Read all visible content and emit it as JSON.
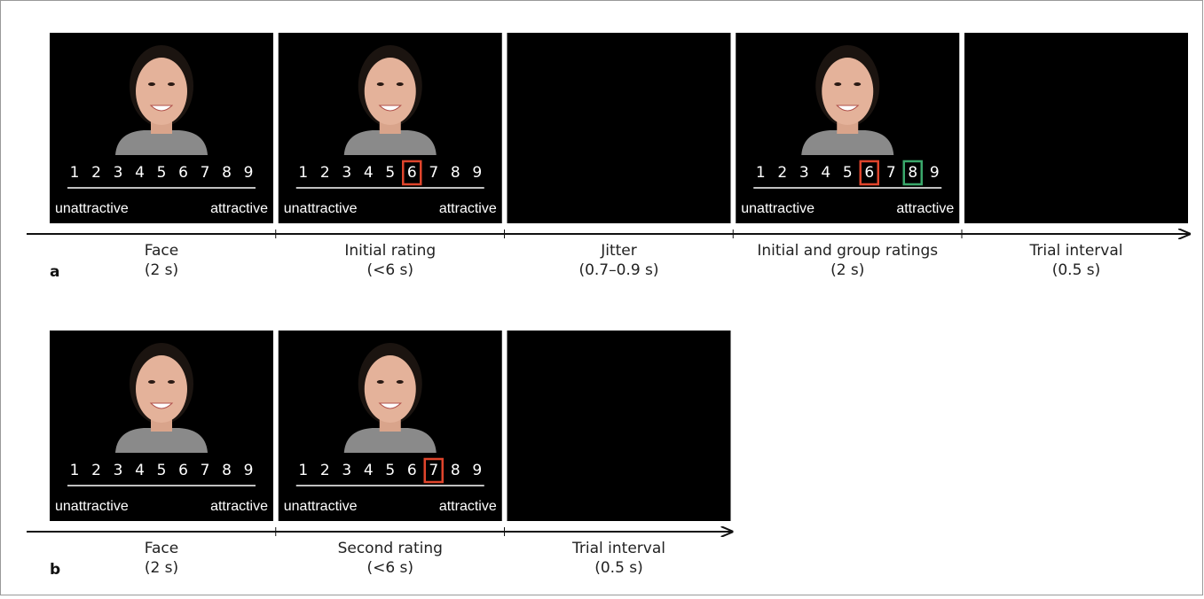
{
  "scale": {
    "numbers": [
      "1",
      "2",
      "3",
      "4",
      "5",
      "6",
      "7",
      "8",
      "9"
    ],
    "low_label": "unattractive",
    "high_label": "attractive"
  },
  "panels": [
    {
      "letter": "a",
      "screens": [
        {
          "face": true,
          "boxes": []
        },
        {
          "face": true,
          "boxes": [
            {
              "at": 6,
              "color": "#e0452c"
            }
          ]
        },
        {
          "face": false,
          "boxes": []
        },
        {
          "face": true,
          "boxes": [
            {
              "at": 6,
              "color": "#e0452c"
            },
            {
              "at": 8,
              "color": "#3aa86b"
            }
          ]
        },
        {
          "face": false,
          "boxes": []
        }
      ],
      "steps": [
        {
          "label": "Face",
          "duration": "(2 s)"
        },
        {
          "label": "Initial rating",
          "duration": "(<6 s)"
        },
        {
          "label": "Jitter",
          "duration": "(0.7–0.9 s)"
        },
        {
          "label": "Initial and group ratings",
          "duration": "(2 s)"
        },
        {
          "label": "Trial interval",
          "duration": "(0.5 s)"
        }
      ]
    },
    {
      "letter": "b",
      "screens": [
        {
          "face": true,
          "boxes": []
        },
        {
          "face": true,
          "boxes": [
            {
              "at": 7,
              "color": "#e0452c"
            }
          ]
        },
        {
          "face": false,
          "boxes": []
        }
      ],
      "steps": [
        {
          "label": "Face",
          "duration": "(2 s)"
        },
        {
          "label": "Second rating",
          "duration": "(<6 s)"
        },
        {
          "label": "Trial interval",
          "duration": "(0.5 s)"
        }
      ]
    }
  ]
}
